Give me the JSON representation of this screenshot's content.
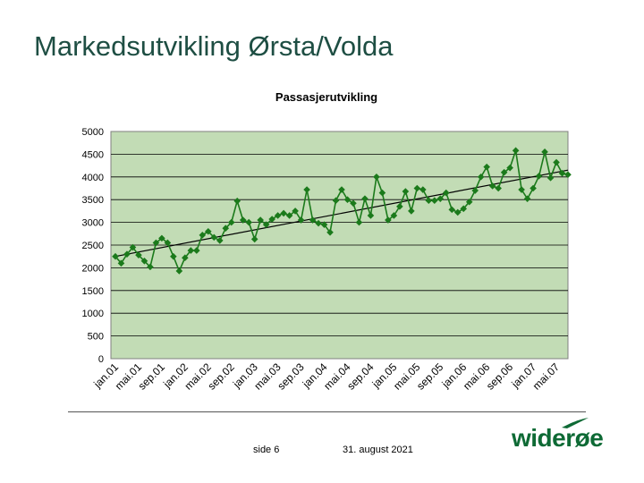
{
  "slide": {
    "title": "Markedsutvikling Ørsta/Volda",
    "page_label": "side 6",
    "date": "31. august 2021"
  },
  "logo": {
    "text": "widerøe",
    "color": "#0e6a35",
    "icon": "wideroe-wing-logo"
  },
  "colors": {
    "plot_bg": "#c2dcb5",
    "series": "#1b7a1b",
    "trend": "#000000",
    "title_color": "#1e4e43"
  },
  "chart_data": {
    "type": "line",
    "title": "Passasjerutvikling",
    "ylim": [
      0,
      5000
    ],
    "yticks": [
      0,
      500,
      1000,
      1500,
      2000,
      2500,
      3000,
      3500,
      4000,
      4500,
      5000
    ],
    "x_tick_labels": [
      "jan.01",
      "mai.01",
      "sep.01",
      "jan.02",
      "mai.02",
      "sep.02",
      "jan.03",
      "mai.03",
      "sep.03",
      "jan.04",
      "mai.04",
      "sep.04",
      "jan.05",
      "mai.05",
      "sep.05",
      "jan.06",
      "mai.06",
      "sep.06",
      "jan.07",
      "mai.07"
    ],
    "grid": "horizontal",
    "legend": "none",
    "series": [
      {
        "markers": "diamond",
        "values": [
          2250,
          2100,
          2300,
          2450,
          2280,
          2150,
          2020,
          2550,
          2650,
          2550,
          2250,
          1930,
          2220,
          2380,
          2380,
          2720,
          2800,
          2670,
          2600,
          2870,
          3000,
          3470,
          3050,
          3000,
          2630,
          3050,
          2950,
          3070,
          3150,
          3200,
          3150,
          3250,
          3050,
          3720,
          3050,
          2980,
          2950,
          2780,
          3480,
          3720,
          3500,
          3420,
          3000,
          3520,
          3150,
          4000,
          3650,
          3050,
          3150,
          3350,
          3680,
          3250,
          3750,
          3720,
          3480,
          3480,
          3520,
          3650,
          3280,
          3220,
          3300,
          3450,
          3700,
          4000,
          4220,
          3800,
          3750,
          4100,
          4200,
          4580,
          3720,
          3520,
          3750,
          4020,
          4550,
          3980,
          4320,
          4080,
          4050
        ]
      },
      {
        "role": "trendline",
        "values": [
          2250,
          4150
        ]
      }
    ]
  }
}
